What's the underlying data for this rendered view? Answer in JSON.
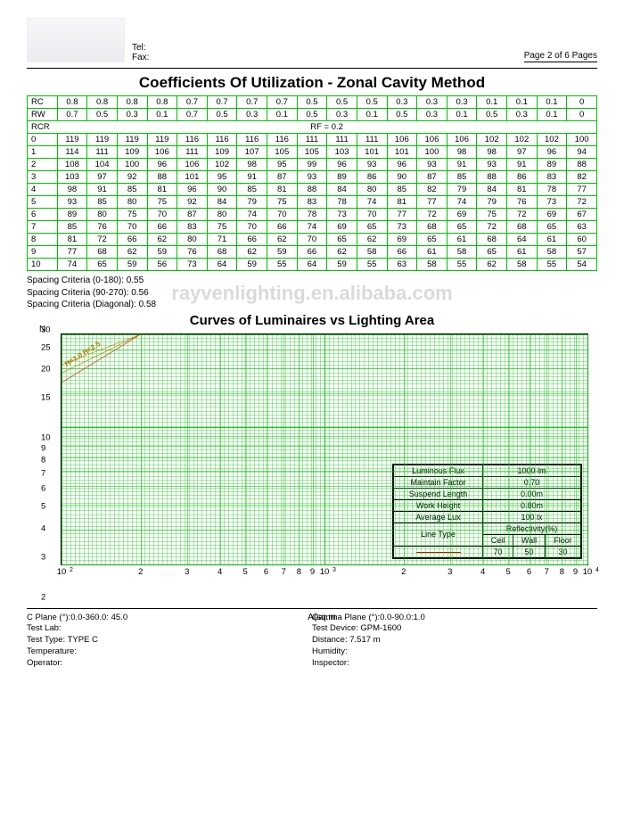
{
  "header": {
    "tel_label": "Tel:",
    "fax_label": "Fax:",
    "page_label": "Page 2 of 6 Pages"
  },
  "cou": {
    "title": "Coefficients Of Utilization - Zonal Cavity Method",
    "rc_label": "RC",
    "rw_label": "RW",
    "rcr_label": "RCR",
    "rf_label": "RF = 0.2",
    "rc": [
      "0.8",
      "0.8",
      "0.8",
      "0.8",
      "0.7",
      "0.7",
      "0.7",
      "0.7",
      "0.5",
      "0.5",
      "0.5",
      "0.3",
      "0.3",
      "0.3",
      "0.1",
      "0.1",
      "0.1",
      "0"
    ],
    "rw": [
      "0.7",
      "0.5",
      "0.3",
      "0.1",
      "0.7",
      "0.5",
      "0.3",
      "0.1",
      "0.5",
      "0.3",
      "0.1",
      "0.5",
      "0.3",
      "0.1",
      "0.5",
      "0.3",
      "0.1",
      "0"
    ],
    "rows": [
      {
        "k": "0",
        "v": [
          "119",
          "119",
          "119",
          "119",
          "116",
          "116",
          "116",
          "116",
          "111",
          "111",
          "111",
          "106",
          "106",
          "106",
          "102",
          "102",
          "102",
          "100"
        ]
      },
      {
        "k": "1",
        "v": [
          "114",
          "111",
          "109",
          "106",
          "111",
          "109",
          "107",
          "105",
          "105",
          "103",
          "101",
          "101",
          "100",
          "98",
          "98",
          "97",
          "96",
          "94"
        ]
      },
      {
        "k": "2",
        "v": [
          "108",
          "104",
          "100",
          "96",
          "106",
          "102",
          "98",
          "95",
          "99",
          "96",
          "93",
          "96",
          "93",
          "91",
          "93",
          "91",
          "89",
          "88"
        ]
      },
      {
        "k": "3",
        "v": [
          "103",
          "97",
          "92",
          "88",
          "101",
          "95",
          "91",
          "87",
          "93",
          "89",
          "86",
          "90",
          "87",
          "85",
          "88",
          "86",
          "83",
          "82"
        ]
      },
      {
        "k": "4",
        "v": [
          "98",
          "91",
          "85",
          "81",
          "96",
          "90",
          "85",
          "81",
          "88",
          "84",
          "80",
          "85",
          "82",
          "79",
          "84",
          "81",
          "78",
          "77"
        ]
      },
      {
        "k": "5",
        "v": [
          "93",
          "85",
          "80",
          "75",
          "92",
          "84",
          "79",
          "75",
          "83",
          "78",
          "74",
          "81",
          "77",
          "74",
          "79",
          "76",
          "73",
          "72"
        ]
      },
      {
        "k": "6",
        "v": [
          "89",
          "80",
          "75",
          "70",
          "87",
          "80",
          "74",
          "70",
          "78",
          "73",
          "70",
          "77",
          "72",
          "69",
          "75",
          "72",
          "69",
          "67"
        ]
      },
      {
        "k": "7",
        "v": [
          "85",
          "76",
          "70",
          "66",
          "83",
          "75",
          "70",
          "66",
          "74",
          "69",
          "65",
          "73",
          "68",
          "65",
          "72",
          "68",
          "65",
          "63"
        ]
      },
      {
        "k": "8",
        "v": [
          "81",
          "72",
          "66",
          "62",
          "80",
          "71",
          "66",
          "62",
          "70",
          "65",
          "62",
          "69",
          "65",
          "61",
          "68",
          "64",
          "61",
          "60"
        ]
      },
      {
        "k": "9",
        "v": [
          "77",
          "68",
          "62",
          "59",
          "76",
          "68",
          "62",
          "59",
          "66",
          "62",
          "58",
          "66",
          "61",
          "58",
          "65",
          "61",
          "58",
          "57"
        ]
      },
      {
        "k": "10",
        "v": [
          "74",
          "65",
          "59",
          "56",
          "73",
          "64",
          "59",
          "55",
          "64",
          "59",
          "55",
          "63",
          "58",
          "55",
          "62",
          "58",
          "55",
          "54"
        ]
      }
    ]
  },
  "spacing": {
    "l1": "Spacing Criteria (0-180): 0.55",
    "l2": "Spacing Criteria (90-270): 0.56",
    "l3": "Spacing Criteria (Diagonal): 0.58"
  },
  "watermark": "rayvenlighting.en.alibaba.com",
  "chart": {
    "title": "Curves of Luminaires vs Lighting Area",
    "ylabel_top": "N",
    "xlabel": "A(sq.m",
    "grid_color": "#00c000",
    "curve_color": "#e00000",
    "yticks": [
      30,
      25,
      20,
      15,
      10,
      9,
      8,
      7,
      6,
      5,
      4,
      3,
      2
    ],
    "yrange_log": [
      2,
      30
    ],
    "xrange_log": [
      100,
      10000
    ],
    "xticks_dec": [
      "10",
      "2",
      "3",
      "4",
      "5",
      "6",
      "7",
      "8",
      "9",
      "10",
      "2",
      "3",
      "4",
      "5",
      "6",
      "7",
      "8",
      "9",
      "10"
    ],
    "xexp": [
      "2",
      "3",
      "4"
    ],
    "curve_points_xy": [
      [
        100,
        17
      ],
      [
        200,
        30
      ]
    ],
    "orange_label": "H=1.0 H=2.5",
    "legend": {
      "rows": [
        {
          "k": "Luminous Flux",
          "v": "1000 lm"
        },
        {
          "k": "Maintain Factor",
          "v": "0.70"
        },
        {
          "k": "Suspend Length",
          "v": "0.00m"
        },
        {
          "k": "Work Height",
          "v": "0.80m"
        },
        {
          "k": "Average Lux",
          "v": "100 lx"
        }
      ],
      "linetype_label": "Line Type",
      "refl_label": "Reflectivity(%)",
      "refl_cols": [
        "Ceil",
        "Wall",
        "Floor"
      ],
      "refl_vals": [
        "70",
        "50",
        "30"
      ]
    }
  },
  "footer": {
    "left": [
      {
        "k": "C Plane (°):0.0-360.0: 45.0",
        "v": ""
      },
      {
        "k": "Test Lab:",
        "v": ""
      },
      {
        "k": "Test Type: TYPE C",
        "v": ""
      },
      {
        "k": "Temperature:",
        "v": ""
      },
      {
        "k": "Operator:",
        "v": ""
      }
    ],
    "right": [
      {
        "k": "Gamma Plane (°):0.0-90.0:1.0",
        "v": ""
      },
      {
        "k": "Test Device: GPM-1600",
        "v": ""
      },
      {
        "k": "Distance: 7.517 m",
        "v": ""
      },
      {
        "k": "Humidity:",
        "v": ""
      },
      {
        "k": "Inspector:",
        "v": ""
      }
    ]
  }
}
